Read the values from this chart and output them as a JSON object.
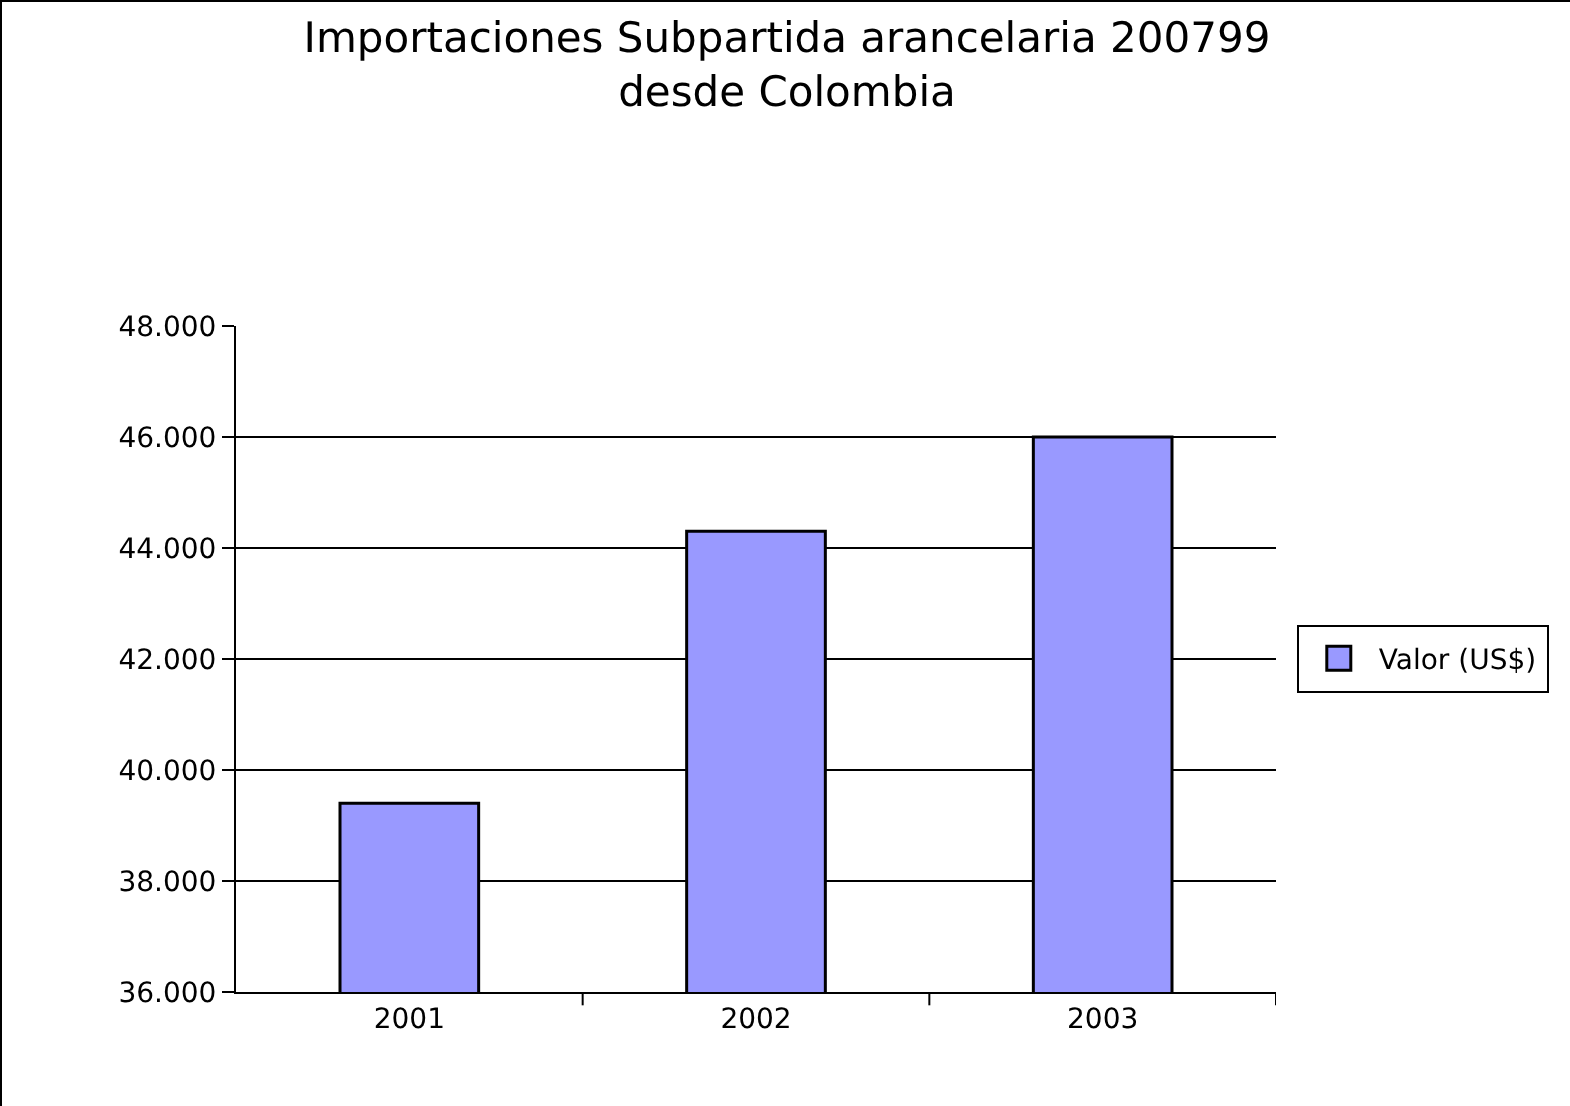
{
  "chart_data": {
    "type": "bar",
    "title": "Importaciones Subpartida arancelaria 200799\ndesde Colombia",
    "categories": [
      "2001",
      "2002",
      "2003"
    ],
    "series": [
      {
        "name": "Valor (US$)",
        "color": "#9999ff",
        "values": [
          39400,
          44300,
          46000
        ]
      }
    ],
    "ylim": [
      36000,
      48000
    ],
    "yticks": [
      {
        "value": 36000,
        "label": "36.000"
      },
      {
        "value": 38000,
        "label": "38.000"
      },
      {
        "value": 40000,
        "label": "40.000"
      },
      {
        "value": 42000,
        "label": "42.000"
      },
      {
        "value": 44000,
        "label": "44.000"
      },
      {
        "value": 46000,
        "label": "46.000"
      },
      {
        "value": 48000,
        "label": "48.000"
      }
    ],
    "grid": "y",
    "legend": "right"
  }
}
